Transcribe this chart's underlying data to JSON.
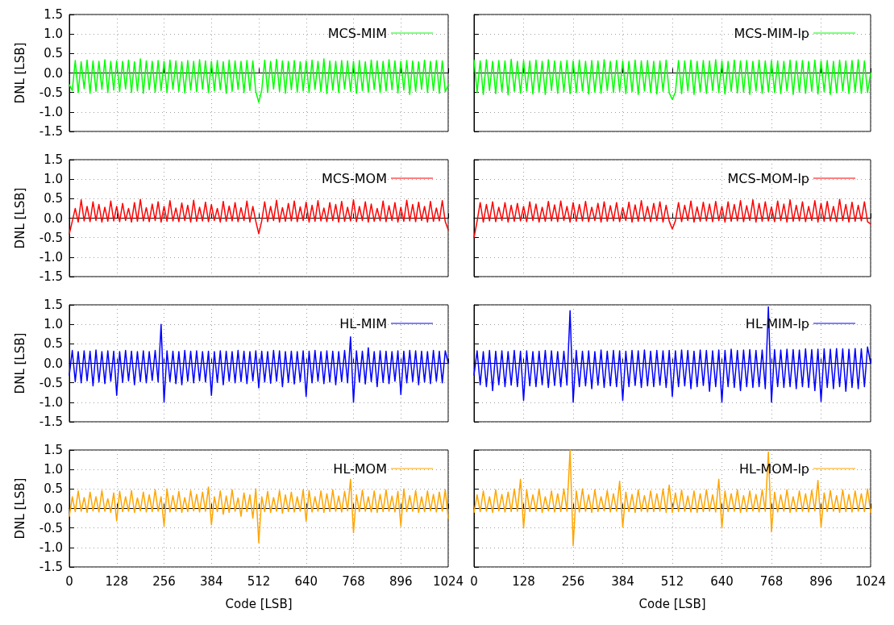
{
  "chart_data": [
    {
      "type": "line",
      "ylabel": "DNL [LSB]",
      "tick_labels": "y",
      "grid": true,
      "legend": "top right",
      "marker": "none",
      "xlim": [
        0,
        1024
      ],
      "xticks": [
        0,
        128,
        256,
        384,
        512,
        640,
        768,
        896,
        1024
      ],
      "ylim": [
        -1.5,
        1.5
      ],
      "yticks": [
        -1.5,
        {
          "value": -1,
          "label": "-1.0"
        },
        -0.5,
        {
          "value": 0,
          "label": "0.0"
        },
        0.5,
        {
          "value": 1,
          "label": "1.0"
        },
        1.5
      ],
      "x": [
        0,
        8,
        16,
        24,
        32,
        40,
        48,
        56,
        64,
        72,
        80,
        88,
        96,
        104,
        112,
        120,
        128,
        136,
        144,
        152,
        160,
        168,
        176,
        184,
        192,
        200,
        208,
        216,
        224,
        232,
        240,
        248,
        256,
        264,
        272,
        280,
        288,
        296,
        304,
        312,
        320,
        328,
        336,
        344,
        352,
        360,
        368,
        376,
        384,
        392,
        400,
        408,
        416,
        424,
        432,
        440,
        448,
        456,
        464,
        472,
        480,
        488,
        496,
        504,
        512,
        520,
        528,
        536,
        544,
        552,
        560,
        568,
        576,
        584,
        592,
        600,
        608,
        616,
        624,
        632,
        640,
        648,
        656,
        664,
        672,
        680,
        688,
        696,
        704,
        712,
        720,
        728,
        736,
        744,
        752,
        760,
        768,
        776,
        784,
        792,
        800,
        808,
        816,
        824,
        832,
        840,
        848,
        856,
        864,
        872,
        880,
        888,
        896,
        904,
        912,
        920,
        928,
        936,
        944,
        952,
        960,
        968,
        976,
        984,
        992,
        1000,
        1008,
        1016,
        1024
      ],
      "series": [
        {
          "name": "MCS-MIM",
          "color": "#00ff00",
          "values": [
            -0.3,
            -0.45,
            0.32,
            -0.5,
            0.29,
            -0.4,
            0.33,
            -0.52,
            0.31,
            -0.47,
            0.3,
            -0.42,
            0.34,
            -0.5,
            0.3,
            -0.44,
            0.31,
            -0.48,
            0.3,
            -0.41,
            0.33,
            -0.5,
            0.29,
            -0.46,
            0.36,
            -0.52,
            0.31,
            -0.43,
            0.3,
            -0.49,
            0.32,
            -0.45,
            0.3,
            -0.5,
            0.33,
            -0.42,
            0.31,
            -0.47,
            0.29,
            -0.51,
            0.32,
            -0.44,
            0.3,
            -0.48,
            0.34,
            -0.41,
            0.31,
            -0.5,
            0.3,
            -0.46,
            0.32,
            -0.43,
            0.29,
            -0.52,
            0.33,
            -0.47,
            0.31,
            -0.42,
            0.3,
            -0.5,
            0.32,
            -0.45,
            0.31,
            -0.48,
            -0.75,
            -0.44,
            0.33,
            -0.5,
            0.3,
            -0.41,
            0.35,
            -0.47,
            0.31,
            -0.52,
            0.3,
            -0.43,
            0.32,
            -0.49,
            0.29,
            -0.46,
            0.31,
            -0.5,
            0.33,
            -0.42,
            0.3,
            -0.48,
            0.36,
            -0.53,
            0.31,
            -0.44,
            0.3,
            -0.5,
            0.32,
            -0.41,
            0.31,
            -0.47,
            0.3,
            -0.52,
            0.32,
            -0.45,
            0.29,
            -0.49,
            0.33,
            -0.42,
            0.31,
            -0.5,
            0.3,
            -0.46,
            0.34,
            -0.43,
            0.31,
            -0.51,
            0.3,
            -0.44,
            0.32,
            -0.55,
            0.31,
            -0.47,
            0.29,
            -0.42,
            0.33,
            -0.5,
            0.3,
            -0.45,
            0.32,
            -0.52,
            0.31,
            -0.48,
            -0.3
          ]
        }
      ]
    },
    {
      "type": "line",
      "tick_labels": false,
      "grid": true,
      "legend": "top right",
      "marker": "none",
      "xlim": [
        0,
        1024
      ],
      "xticks": [
        0,
        128,
        256,
        384,
        512,
        640,
        768,
        896,
        1024
      ],
      "ylim": [
        -1.5,
        1.5
      ],
      "yticks": [
        {
          "value": -1.5,
          "label": null
        },
        {
          "value": -1,
          "label": null
        },
        {
          "value": -0.5,
          "label": null
        },
        {
          "value": 0,
          "label": null
        },
        {
          "value": 0.5,
          "label": null
        },
        {
          "value": 1,
          "label": null
        },
        {
          "value": 1.5,
          "label": null
        }
      ],
      "x": [
        0,
        8,
        16,
        24,
        32,
        40,
        48,
        56,
        64,
        72,
        80,
        88,
        96,
        104,
        112,
        120,
        128,
        136,
        144,
        152,
        160,
        168,
        176,
        184,
        192,
        200,
        208,
        216,
        224,
        232,
        240,
        248,
        256,
        264,
        272,
        280,
        288,
        296,
        304,
        312,
        320,
        328,
        336,
        344,
        352,
        360,
        368,
        376,
        384,
        392,
        400,
        408,
        416,
        424,
        432,
        440,
        448,
        456,
        464,
        472,
        480,
        488,
        496,
        504,
        512,
        520,
        528,
        536,
        544,
        552,
        560,
        568,
        576,
        584,
        592,
        600,
        608,
        616,
        624,
        632,
        640,
        648,
        656,
        664,
        672,
        680,
        688,
        696,
        704,
        712,
        720,
        728,
        736,
        744,
        752,
        760,
        768,
        776,
        784,
        792,
        800,
        808,
        816,
        824,
        832,
        840,
        848,
        856,
        864,
        872,
        880,
        888,
        896,
        904,
        912,
        920,
        928,
        936,
        944,
        952,
        960,
        968,
        976,
        984,
        992,
        1000,
        1008,
        1016,
        1024
      ],
      "series": [
        {
          "name": "MCS-MIM-lp",
          "color": "#00ff00",
          "values": [
            0.33,
            -0.5,
            0.31,
            -0.55,
            0.34,
            -0.45,
            0.3,
            -0.53,
            0.32,
            -0.48,
            0.31,
            -0.56,
            0.35,
            -0.47,
            0.3,
            -0.52,
            0.32,
            -0.46,
            0.31,
            -0.54,
            0.33,
            -0.49,
            0.3,
            -0.55,
            0.34,
            -0.45,
            0.31,
            -0.52,
            0.3,
            -0.48,
            0.32,
            -0.53,
            0.31,
            -0.5,
            0.33,
            -0.46,
            0.3,
            -0.54,
            0.32,
            -0.49,
            0.31,
            -0.52,
            0.34,
            -0.45,
            0.3,
            -0.5,
            0.32,
            -0.47,
            0.31,
            -0.53,
            0.3,
            -0.48,
            0.33,
            -0.55,
            0.31,
            -0.46,
            0.32,
            -0.5,
            0.3,
            -0.54,
            0.31,
            -0.47,
            0.33,
            -0.51,
            -0.68,
            -0.49,
            0.32,
            -0.53,
            0.31,
            -0.46,
            0.33,
            -0.55,
            0.3,
            -0.48,
            0.32,
            -0.52,
            0.31,
            -0.45,
            0.34,
            -0.5,
            0.31,
            -0.54,
            0.3,
            -0.47,
            0.33,
            -0.51,
            0.31,
            -0.49,
            0.32,
            -0.55,
            0.3,
            -0.46,
            0.33,
            -0.52,
            0.31,
            -0.48,
            0.32,
            -0.5,
            0.31,
            -0.53,
            0.3,
            -0.46,
            0.33,
            -0.55,
            0.31,
            -0.49,
            0.32,
            -0.52,
            0.3,
            -0.47,
            0.33,
            -0.54,
            0.31,
            -0.48,
            0.32,
            -0.55,
            0.3,
            -0.5,
            0.33,
            -0.46,
            0.31,
            -0.53,
            0.32,
            -0.49,
            0.34,
            -0.52,
            0.31,
            -0.5,
            0.0
          ]
        }
      ]
    },
    {
      "type": "line",
      "ylabel": "DNL [LSB]",
      "tick_labels": "y",
      "grid": true,
      "legend": "top right",
      "marker": "none",
      "xlim": [
        0,
        1024
      ],
      "xticks": [
        0,
        128,
        256,
        384,
        512,
        640,
        768,
        896,
        1024
      ],
      "ylim": [
        -1.5,
        1.5
      ],
      "yticks": [
        -1.5,
        {
          "value": -1,
          "label": "-1.0"
        },
        -0.5,
        {
          "value": 0,
          "label": "0.0"
        },
        0.5,
        {
          "value": 1,
          "label": "1.0"
        },
        1.5
      ],
      "x": [
        0,
        8,
        16,
        24,
        32,
        40,
        48,
        56,
        64,
        72,
        80,
        88,
        96,
        104,
        112,
        120,
        128,
        136,
        144,
        152,
        160,
        168,
        176,
        184,
        192,
        200,
        208,
        216,
        224,
        232,
        240,
        248,
        256,
        264,
        272,
        280,
        288,
        296,
        304,
        312,
        320,
        328,
        336,
        344,
        352,
        360,
        368,
        376,
        384,
        392,
        400,
        408,
        416,
        424,
        432,
        440,
        448,
        456,
        464,
        472,
        480,
        488,
        496,
        504,
        512,
        520,
        528,
        536,
        544,
        552,
        560,
        568,
        576,
        584,
        592,
        600,
        608,
        616,
        624,
        632,
        640,
        648,
        656,
        664,
        672,
        680,
        688,
        696,
        704,
        712,
        720,
        728,
        736,
        744,
        752,
        760,
        768,
        776,
        784,
        792,
        800,
        808,
        816,
        824,
        832,
        840,
        848,
        856,
        864,
        872,
        880,
        888,
        896,
        904,
        912,
        920,
        928,
        936,
        944,
        952,
        960,
        968,
        976,
        984,
        992,
        1000,
        1008,
        1016,
        1024
      ],
      "series": [
        {
          "name": "MCS-MOM",
          "color": "#ff0000",
          "values": [
            -0.4,
            -0.08,
            0.25,
            -0.1,
            0.47,
            -0.07,
            0.3,
            -0.09,
            0.42,
            -0.06,
            0.35,
            -0.1,
            0.28,
            -0.08,
            0.44,
            -0.07,
            0.3,
            -0.09,
            0.38,
            -0.06,
            0.25,
            -0.1,
            0.4,
            -0.08,
            0.48,
            -0.07,
            0.27,
            -0.09,
            0.36,
            -0.06,
            0.42,
            -0.1,
            0.3,
            -0.08,
            0.45,
            -0.07,
            0.26,
            -0.09,
            0.39,
            -0.06,
            0.33,
            -0.1,
            0.46,
            -0.08,
            0.28,
            -0.07,
            0.41,
            -0.09,
            0.35,
            -0.06,
            0.25,
            -0.1,
            0.43,
            -0.08,
            0.31,
            -0.07,
            0.4,
            -0.09,
            0.27,
            -0.06,
            0.44,
            -0.1,
            0.3,
            -0.08,
            -0.4,
            -0.07,
            0.42,
            -0.09,
            0.3,
            -0.06,
            0.46,
            -0.1,
            0.27,
            -0.08,
            0.38,
            -0.07,
            0.44,
            -0.09,
            0.29,
            -0.06,
            0.41,
            -0.1,
            0.33,
            -0.08,
            0.45,
            -0.07,
            0.26,
            -0.09,
            0.4,
            -0.06,
            0.35,
            -0.1,
            0.43,
            -0.08,
            0.28,
            -0.07,
            0.47,
            -0.09,
            0.3,
            -0.06,
            0.42,
            -0.1,
            0.36,
            -0.08,
            0.25,
            -0.07,
            0.44,
            -0.09,
            0.32,
            -0.06,
            0.4,
            -0.1,
            0.28,
            -0.08,
            0.46,
            -0.07,
            0.35,
            -0.09,
            0.41,
            -0.06,
            0.3,
            -0.1,
            0.43,
            -0.08,
            0.26,
            -0.07,
            0.45,
            -0.09,
            -0.3
          ]
        }
      ]
    },
    {
      "type": "line",
      "tick_labels": false,
      "grid": true,
      "legend": "top right",
      "marker": "none",
      "xlim": [
        0,
        1024
      ],
      "xticks": [
        0,
        128,
        256,
        384,
        512,
        640,
        768,
        896,
        1024
      ],
      "ylim": [
        -1.5,
        1.5
      ],
      "yticks": [
        {
          "value": -1.5,
          "label": null
        },
        {
          "value": -1,
          "label": null
        },
        {
          "value": -0.5,
          "label": null
        },
        {
          "value": 0,
          "label": null
        },
        {
          "value": 0.5,
          "label": null
        },
        {
          "value": 1,
          "label": null
        },
        {
          "value": 1.5,
          "label": null
        }
      ],
      "x": [
        0,
        8,
        16,
        24,
        32,
        40,
        48,
        56,
        64,
        72,
        80,
        88,
        96,
        104,
        112,
        120,
        128,
        136,
        144,
        152,
        160,
        168,
        176,
        184,
        192,
        200,
        208,
        216,
        224,
        232,
        240,
        248,
        256,
        264,
        272,
        280,
        288,
        296,
        304,
        312,
        320,
        328,
        336,
        344,
        352,
        360,
        368,
        376,
        384,
        392,
        400,
        408,
        416,
        424,
        432,
        440,
        448,
        456,
        464,
        472,
        480,
        488,
        496,
        504,
        512,
        520,
        528,
        536,
        544,
        552,
        560,
        568,
        576,
        584,
        592,
        600,
        608,
        616,
        624,
        632,
        640,
        648,
        656,
        664,
        672,
        680,
        688,
        696,
        704,
        712,
        720,
        728,
        736,
        744,
        752,
        760,
        768,
        776,
        784,
        792,
        800,
        808,
        816,
        824,
        832,
        840,
        848,
        856,
        864,
        872,
        880,
        888,
        896,
        904,
        912,
        920,
        928,
        936,
        944,
        952,
        960,
        968,
        976,
        984,
        992,
        1000,
        1008,
        1016,
        1024
      ],
      "series": [
        {
          "name": "MCS-MOM-lp",
          "color": "#ff0000",
          "values": [
            -0.5,
            -0.08,
            0.4,
            -0.1,
            0.35,
            -0.07,
            0.42,
            -0.09,
            0.28,
            -0.06,
            0.4,
            -0.1,
            0.33,
            -0.08,
            0.38,
            -0.07,
            0.3,
            -0.09,
            0.42,
            -0.06,
            0.36,
            -0.1,
            0.28,
            -0.08,
            0.43,
            -0.07,
            0.34,
            -0.09,
            0.44,
            -0.06,
            0.3,
            -0.1,
            0.4,
            -0.08,
            0.35,
            -0.07,
            0.43,
            -0.09,
            0.28,
            -0.06,
            0.38,
            -0.1,
            0.42,
            -0.08,
            0.32,
            -0.07,
            0.4,
            -0.09,
            0.27,
            -0.06,
            0.41,
            -0.1,
            0.34,
            -0.08,
            0.45,
            -0.07,
            0.3,
            -0.09,
            0.38,
            -0.06,
            0.42,
            -0.1,
            0.33,
            -0.08,
            -0.28,
            -0.07,
            0.4,
            -0.09,
            0.33,
            -0.06,
            0.44,
            -0.1,
            0.29,
            -0.08,
            0.41,
            -0.07,
            0.36,
            -0.09,
            0.43,
            -0.06,
            0.3,
            -0.1,
            0.42,
            -0.08,
            0.35,
            -0.07,
            0.45,
            -0.09,
            0.32,
            -0.06,
            0.47,
            -0.1,
            0.38,
            -0.08,
            0.42,
            -0.07,
            0.29,
            -0.09,
            0.44,
            -0.06,
            0.36,
            -0.1,
            0.47,
            -0.08,
            0.33,
            -0.07,
            0.42,
            -0.09,
            0.3,
            -0.06,
            0.45,
            -0.1,
            0.38,
            -0.08,
            0.43,
            -0.07,
            0.3,
            -0.09,
            0.48,
            -0.06,
            0.35,
            -0.1,
            0.41,
            -0.08,
            0.33,
            -0.07,
            0.42,
            -0.09,
            -0.15
          ]
        }
      ]
    },
    {
      "type": "line",
      "ylabel": "DNL [LSB]",
      "tick_labels": "y",
      "grid": true,
      "legend": "top right",
      "marker": "none",
      "xlim": [
        0,
        1024
      ],
      "xticks": [
        0,
        128,
        256,
        384,
        512,
        640,
        768,
        896,
        1024
      ],
      "ylim": [
        -1.5,
        1.5
      ],
      "yticks": [
        -1.5,
        {
          "value": -1,
          "label": "-1.0"
        },
        -0.5,
        {
          "value": 0,
          "label": "0.0"
        },
        0.5,
        {
          "value": 1,
          "label": "1.0"
        },
        1.5
      ],
      "x": [
        0,
        8,
        16,
        24,
        32,
        40,
        48,
        56,
        64,
        72,
        80,
        88,
        96,
        104,
        112,
        120,
        128,
        136,
        144,
        152,
        160,
        168,
        176,
        184,
        192,
        200,
        208,
        216,
        224,
        232,
        240,
        248,
        256,
        264,
        272,
        280,
        288,
        296,
        304,
        312,
        320,
        328,
        336,
        344,
        352,
        360,
        368,
        376,
        384,
        392,
        400,
        408,
        416,
        424,
        432,
        440,
        448,
        456,
        464,
        472,
        480,
        488,
        496,
        504,
        512,
        520,
        528,
        536,
        544,
        552,
        560,
        568,
        576,
        584,
        592,
        600,
        608,
        616,
        624,
        632,
        640,
        648,
        656,
        664,
        672,
        680,
        688,
        696,
        704,
        712,
        720,
        728,
        736,
        744,
        752,
        760,
        768,
        776,
        784,
        792,
        800,
        808,
        816,
        824,
        832,
        840,
        848,
        856,
        864,
        872,
        880,
        888,
        896,
        904,
        912,
        920,
        928,
        936,
        944,
        952,
        960,
        968,
        976,
        984,
        992,
        1000,
        1008,
        1016,
        1024
      ],
      "series": [
        {
          "name": "HL-MIM",
          "color": "#0000ff",
          "values": [
            -0.3,
            0.33,
            -0.47,
            0.3,
            -0.5,
            0.32,
            -0.45,
            0.31,
            -0.58,
            0.34,
            -0.48,
            0.3,
            -0.52,
            0.32,
            -0.46,
            0.31,
            -0.82,
            0.3,
            -0.49,
            0.33,
            -0.45,
            0.31,
            -0.55,
            0.3,
            -0.47,
            0.32,
            -0.5,
            0.3,
            -0.44,
            0.33,
            -0.48,
            1.0,
            -1.0,
            0.32,
            -0.47,
            0.31,
            -0.52,
            0.3,
            -0.55,
            0.33,
            -0.46,
            0.31,
            -0.5,
            0.32,
            -0.45,
            0.3,
            -0.48,
            0.31,
            -0.82,
            0.3,
            -0.49,
            0.32,
            -0.55,
            0.31,
            -0.46,
            0.3,
            -0.5,
            0.33,
            -0.47,
            0.31,
            -0.52,
            0.3,
            -0.45,
            0.32,
            -0.63,
            0.31,
            -0.48,
            0.3,
            -0.51,
            0.33,
            -0.46,
            0.32,
            -0.6,
            0.3,
            -0.49,
            0.31,
            -0.53,
            0.3,
            -0.47,
            0.32,
            -0.85,
            0.31,
            -0.5,
            0.33,
            -0.46,
            0.3,
            -0.52,
            0.32,
            -0.48,
            0.31,
            -0.55,
            0.3,
            -0.47,
            0.33,
            -0.5,
            0.68,
            -1.0,
            0.32,
            -0.48,
            0.31,
            -0.53,
            0.4,
            -0.47,
            0.3,
            -0.6,
            0.32,
            -0.49,
            0.31,
            -0.52,
            0.3,
            -0.46,
            0.32,
            -0.8,
            0.31,
            -0.5,
            0.33,
            -0.47,
            0.32,
            -0.55,
            0.31,
            -0.48,
            0.3,
            -0.52,
            0.33,
            -0.46,
            0.31,
            -0.5,
            0.32,
            0.0
          ]
        }
      ]
    },
    {
      "type": "line",
      "tick_labels": false,
      "grid": true,
      "legend": "top right",
      "marker": "none",
      "xlim": [
        0,
        1024
      ],
      "xticks": [
        0,
        128,
        256,
        384,
        512,
        640,
        768,
        896,
        1024
      ],
      "ylim": [
        -1.5,
        1.5
      ],
      "yticks": [
        {
          "value": -1.5,
          "label": null
        },
        {
          "value": -1,
          "label": null
        },
        {
          "value": -0.5,
          "label": null
        },
        {
          "value": 0,
          "label": null
        },
        {
          "value": 0.5,
          "label": null
        },
        {
          "value": 1,
          "label": null
        },
        {
          "value": 1.5,
          "label": null
        }
      ],
      "x": [
        0,
        8,
        16,
        24,
        32,
        40,
        48,
        56,
        64,
        72,
        80,
        88,
        96,
        104,
        112,
        120,
        128,
        136,
        144,
        152,
        160,
        168,
        176,
        184,
        192,
        200,
        208,
        216,
        224,
        232,
        240,
        248,
        256,
        264,
        272,
        280,
        288,
        296,
        304,
        312,
        320,
        328,
        336,
        344,
        352,
        360,
        368,
        376,
        384,
        392,
        400,
        408,
        416,
        424,
        432,
        440,
        448,
        456,
        464,
        472,
        480,
        488,
        496,
        504,
        512,
        520,
        528,
        536,
        544,
        552,
        560,
        568,
        576,
        584,
        592,
        600,
        608,
        616,
        624,
        632,
        640,
        648,
        656,
        664,
        672,
        680,
        688,
        696,
        704,
        712,
        720,
        728,
        736,
        744,
        752,
        760,
        768,
        776,
        784,
        792,
        800,
        808,
        816,
        824,
        832,
        840,
        848,
        856,
        864,
        872,
        880,
        888,
        896,
        904,
        912,
        920,
        928,
        936,
        944,
        952,
        960,
        968,
        976,
        984,
        992,
        1000,
        1008,
        1016,
        1024
      ],
      "series": [
        {
          "name": "HL-MIM-lp",
          "color": "#0000ff",
          "values": [
            -0.3,
            0.32,
            -0.55,
            0.3,
            -0.6,
            0.33,
            -0.7,
            0.31,
            -0.55,
            0.32,
            -0.6,
            0.3,
            -0.56,
            0.33,
            -0.6,
            0.31,
            -0.95,
            0.32,
            -0.58,
            0.3,
            -0.6,
            0.31,
            -0.55,
            0.33,
            -0.62,
            0.32,
            -0.57,
            0.3,
            -0.6,
            0.31,
            -0.56,
            1.35,
            -1.0,
            0.33,
            -0.6,
            0.31,
            -0.58,
            0.32,
            -0.65,
            0.3,
            -0.56,
            0.34,
            -0.62,
            0.31,
            -0.58,
            0.33,
            -0.6,
            0.32,
            -0.95,
            0.31,
            -0.6,
            0.33,
            -0.57,
            0.32,
            -0.62,
            0.34,
            -0.58,
            0.31,
            -0.6,
            0.33,
            -0.56,
            0.32,
            -0.62,
            0.33,
            -0.85,
            0.32,
            -0.6,
            0.34,
            -0.58,
            0.33,
            -0.65,
            0.31,
            -0.6,
            0.34,
            -0.57,
            0.33,
            -0.72,
            0.32,
            -0.6,
            0.34,
            -1.0,
            0.33,
            -0.6,
            0.36,
            -0.62,
            0.33,
            -0.7,
            0.34,
            -0.6,
            0.35,
            -0.62,
            0.33,
            -0.6,
            0.34,
            -0.65,
            1.45,
            -1.0,
            0.35,
            -0.6,
            0.34,
            -0.62,
            0.36,
            -0.6,
            0.35,
            -0.65,
            0.34,
            -0.6,
            0.37,
            -0.62,
            0.35,
            -0.7,
            0.36,
            -0.98,
            0.37,
            -0.62,
            0.36,
            -0.65,
            0.38,
            -0.6,
            0.37,
            -0.72,
            0.36,
            -0.62,
            0.38,
            -0.65,
            0.37,
            -0.6,
            0.42,
            0.0
          ]
        }
      ]
    },
    {
      "type": "line",
      "xlabel": "Code [LSB]",
      "ylabel": "DNL [LSB]",
      "grid": true,
      "legend": "top right",
      "marker": "none",
      "xlim": [
        0,
        1024
      ],
      "xticks": [
        0,
        128,
        256,
        384,
        512,
        640,
        768,
        896,
        1024
      ],
      "ylim": [
        -1.5,
        1.5
      ],
      "yticks": [
        -1.5,
        {
          "value": -1,
          "label": "-1.0"
        },
        -0.5,
        {
          "value": 0,
          "label": "0.0"
        },
        0.5,
        {
          "value": 1,
          "label": "1.0"
        },
        1.5
      ],
      "x": [
        0,
        8,
        16,
        24,
        32,
        40,
        48,
        56,
        64,
        72,
        80,
        88,
        96,
        104,
        112,
        120,
        128,
        136,
        144,
        152,
        160,
        168,
        176,
        184,
        192,
        200,
        208,
        216,
        224,
        232,
        240,
        248,
        256,
        264,
        272,
        280,
        288,
        296,
        304,
        312,
        320,
        328,
        336,
        344,
        352,
        360,
        368,
        376,
        384,
        392,
        400,
        408,
        416,
        424,
        432,
        440,
        448,
        456,
        464,
        472,
        480,
        488,
        496,
        504,
        512,
        520,
        528,
        536,
        544,
        552,
        560,
        568,
        576,
        584,
        592,
        600,
        608,
        616,
        624,
        632,
        640,
        648,
        656,
        664,
        672,
        680,
        688,
        696,
        704,
        712,
        720,
        728,
        736,
        744,
        752,
        760,
        768,
        776,
        784,
        792,
        800,
        808,
        816,
        824,
        832,
        840,
        848,
        856,
        864,
        872,
        880,
        888,
        896,
        904,
        912,
        920,
        928,
        936,
        944,
        952,
        960,
        968,
        976,
        984,
        992,
        1000,
        1008,
        1016,
        1024
      ],
      "series": [
        {
          "name": "HL-MOM",
          "color": "#ffa500",
          "values": [
            -0.2,
            0.3,
            -0.08,
            0.45,
            -0.07,
            0.28,
            -0.1,
            0.42,
            -0.06,
            0.3,
            -0.09,
            0.46,
            -0.07,
            0.25,
            -0.1,
            0.4,
            -0.32,
            0.44,
            -0.08,
            0.3,
            -0.07,
            0.46,
            -0.1,
            0.27,
            -0.06,
            0.42,
            -0.09,
            0.35,
            -0.08,
            0.48,
            -0.07,
            0.3,
            -0.45,
            0.5,
            -0.09,
            0.33,
            -0.07,
            0.44,
            -0.1,
            0.28,
            -0.08,
            0.46,
            -0.06,
            0.36,
            -0.09,
            0.42,
            -0.07,
            0.55,
            -0.42,
            0.3,
            -0.08,
            0.45,
            -0.15,
            0.32,
            -0.1,
            0.48,
            -0.07,
            0.27,
            -0.2,
            0.4,
            -0.08,
            0.35,
            -0.25,
            0.5,
            -0.88,
            0.3,
            -0.08,
            0.44,
            -0.1,
            0.28,
            -0.07,
            0.46,
            -0.12,
            0.35,
            -0.08,
            0.42,
            -0.09,
            0.3,
            -0.07,
            0.48,
            -0.33,
            0.46,
            -0.09,
            0.3,
            -0.07,
            0.45,
            -0.1,
            0.38,
            -0.08,
            0.48,
            -0.07,
            0.32,
            -0.09,
            0.44,
            -0.06,
            0.75,
            -0.62,
            0.35,
            -0.08,
            0.47,
            -0.07,
            0.3,
            -0.09,
            0.45,
            -0.1,
            0.36,
            -0.08,
            0.48,
            -0.07,
            0.32,
            -0.09,
            0.44,
            -0.45,
            0.5,
            -0.08,
            0.33,
            -0.07,
            0.46,
            -0.1,
            0.3,
            -0.08,
            0.45,
            -0.06,
            0.36,
            -0.09,
            0.42,
            -0.07,
            0.48,
            -0.25
          ]
        }
      ]
    },
    {
      "type": "line",
      "xlabel": "Code [LSB]",
      "tick_labels": "x",
      "grid": true,
      "legend": "top right",
      "marker": "none",
      "xlim": [
        0,
        1024
      ],
      "xticks": [
        0,
        128,
        256,
        384,
        512,
        640,
        768,
        896,
        1024
      ],
      "ylim": [
        -1.5,
        1.5
      ],
      "yticks": [
        {
          "value": -1.5,
          "label": null
        },
        {
          "value": -1,
          "label": null
        },
        {
          "value": -0.5,
          "label": null
        },
        {
          "value": 0,
          "label": null
        },
        {
          "value": 0.5,
          "label": null
        },
        {
          "value": 1,
          "label": null
        },
        {
          "value": 1.5,
          "label": null
        }
      ],
      "x": [
        0,
        8,
        16,
        24,
        32,
        40,
        48,
        56,
        64,
        72,
        80,
        88,
        96,
        104,
        112,
        120,
        128,
        136,
        144,
        152,
        160,
        168,
        176,
        184,
        192,
        200,
        208,
        216,
        224,
        232,
        240,
        248,
        256,
        264,
        272,
        280,
        288,
        296,
        304,
        312,
        320,
        328,
        336,
        344,
        352,
        360,
        368,
        376,
        384,
        392,
        400,
        408,
        416,
        424,
        432,
        440,
        448,
        456,
        464,
        472,
        480,
        488,
        496,
        504,
        512,
        520,
        528,
        536,
        544,
        552,
        560,
        568,
        576,
        584,
        592,
        600,
        608,
        616,
        624,
        632,
        640,
        648,
        656,
        664,
        672,
        680,
        688,
        696,
        704,
        712,
        720,
        728,
        736,
        744,
        752,
        760,
        768,
        776,
        784,
        792,
        800,
        808,
        816,
        824,
        832,
        840,
        848,
        856,
        864,
        872,
        880,
        888,
        896,
        904,
        912,
        920,
        928,
        936,
        944,
        952,
        960,
        968,
        976,
        984,
        992,
        1000,
        1008,
        1016,
        1024
      ],
      "series": [
        {
          "name": "HL-MOM-lp",
          "color": "#ffa500",
          "values": [
            -0.1,
            0.35,
            -0.08,
            0.45,
            -0.07,
            0.3,
            -0.1,
            0.48,
            -0.06,
            0.36,
            -0.09,
            0.42,
            -0.08,
            0.5,
            -0.07,
            0.75,
            -0.5,
            0.48,
            -0.08,
            0.35,
            -0.07,
            0.5,
            -0.1,
            0.3,
            -0.06,
            0.45,
            -0.09,
            0.38,
            -0.08,
            0.5,
            -0.07,
            1.5,
            -0.95,
            0.45,
            -0.09,
            0.5,
            -0.07,
            0.35,
            -0.1,
            0.48,
            -0.08,
            0.3,
            -0.06,
            0.46,
            -0.09,
            0.38,
            -0.07,
            0.7,
            -0.48,
            0.42,
            -0.08,
            0.36,
            -0.1,
            0.48,
            -0.07,
            0.33,
            -0.09,
            0.45,
            -0.08,
            0.38,
            -0.07,
            0.5,
            -0.1,
            0.6,
            -0.1,
            0.4,
            -0.08,
            0.47,
            -0.07,
            0.32,
            -0.09,
            0.45,
            -0.1,
            0.38,
            -0.08,
            0.48,
            -0.07,
            0.35,
            -0.09,
            0.75,
            -0.5,
            0.45,
            -0.08,
            0.38,
            -0.07,
            0.48,
            -0.1,
            0.33,
            -0.08,
            0.45,
            -0.06,
            0.36,
            -0.09,
            0.48,
            -0.07,
            1.45,
            -0.6,
            0.42,
            -0.09,
            0.35,
            -0.07,
            0.48,
            -0.1,
            0.3,
            -0.08,
            0.45,
            -0.07,
            0.38,
            -0.09,
            0.47,
            -0.06,
            0.72,
            -0.48,
            0.4,
            -0.08,
            0.46,
            -0.07,
            0.33,
            -0.1,
            0.48,
            -0.08,
            0.36,
            -0.09,
            0.45,
            -0.07,
            0.38,
            -0.08,
            0.5,
            -0.1
          ]
        }
      ]
    }
  ]
}
